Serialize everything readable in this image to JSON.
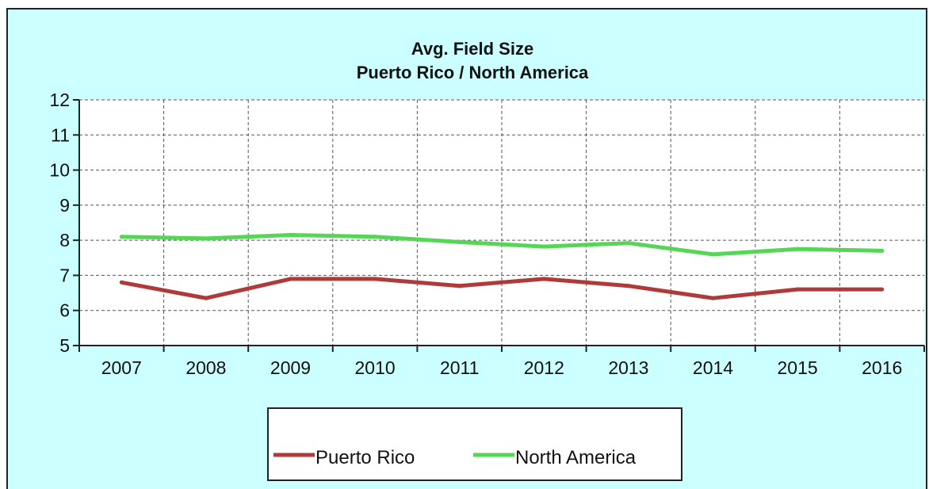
{
  "colors": {
    "background": "#ccffff",
    "plot_background": "#ffffff",
    "grid": "#555555",
    "axis": "#222222"
  },
  "chart_data": {
    "type": "line",
    "title": "Avg. Field Size",
    "subtitle": "Puerto Rico / North America",
    "xlabel": "",
    "ylabel": "",
    "categories": [
      "2007",
      "2008",
      "2009",
      "2010",
      "2011",
      "2012",
      "2013",
      "2014",
      "2015",
      "2016"
    ],
    "ylim": [
      5,
      12
    ],
    "yticks": [
      5,
      6,
      7,
      8,
      9,
      10,
      11,
      12
    ],
    "grid": true,
    "grid_style": "dashed",
    "legend_position": "bottom",
    "series": [
      {
        "name": "Puerto Rico",
        "color": "#b03a3a",
        "values": [
          6.8,
          6.35,
          6.9,
          6.9,
          6.7,
          6.9,
          6.7,
          6.35,
          6.6,
          6.6
        ]
      },
      {
        "name": "North America",
        "color": "#55d655",
        "values": [
          8.1,
          8.05,
          8.15,
          8.1,
          7.95,
          7.82,
          7.92,
          7.6,
          7.75,
          7.7
        ]
      }
    ]
  }
}
